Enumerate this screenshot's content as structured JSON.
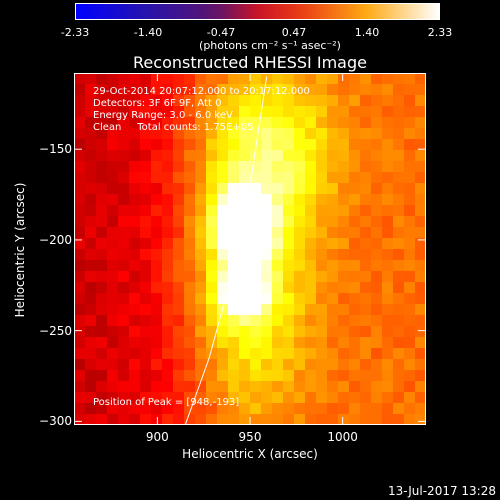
{
  "colorbar": {
    "ticks": [
      "-2.33",
      "-1.40",
      "-0.47",
      "0.47",
      "1.40",
      "2.33"
    ],
    "unit_label": "(photons cm⁻² s⁻¹ asec⁻²)",
    "range": [
      -2.33,
      2.33
    ]
  },
  "annotations": {
    "time_range": "29-Oct-2014 20:07:12.000 to 20:17:12.000",
    "detectors": "Detectors: 3F 6F 9F, Att 0",
    "energy_range": "Energy Range: 3.0 - 6.0 keV",
    "clean": "Clean     Total counts: 1.75E+05",
    "peak_position": "Position of Peak = [948,-193]"
  },
  "footer": {
    "date": "13-Jul-2017 13:28"
  },
  "colors": {
    "background": "#000000",
    "text": "#ffffff",
    "limb": "#ffffff"
  },
  "chart_data": {
    "type": "heatmap",
    "title": "Reconstructed RHESSI Image",
    "xlabel": "Heliocentric X (arcsec)",
    "ylabel": "Heliocentric Y (arcsec)",
    "xlim": [
      855,
      1045
    ],
    "ylim": [
      -302,
      -108
    ],
    "xticks": [
      900,
      950,
      1000
    ],
    "yticks": [
      -150,
      -200,
      -250,
      -300
    ],
    "colormap": "hot",
    "sources": [
      {
        "x": 947,
        "y": -193,
        "sx": 9,
        "sy": 12,
        "amp": 1.0
      },
      {
        "x": 946,
        "y": -228,
        "sx": 8,
        "sy": 9,
        "amp": 0.9
      },
      {
        "x": 948,
        "y": -210,
        "sx": 22,
        "sy": 60,
        "amp": 0.45
      },
      {
        "x": 965,
        "y": -150,
        "sx": 25,
        "sy": 30,
        "amp": 0.25
      }
    ],
    "limb": [
      {
        "x": 959,
        "y": -110
      },
      {
        "x": 950,
        "y": -170
      },
      {
        "x": 940,
        "y": -220
      },
      {
        "x": 928,
        "y": -265
      },
      {
        "x": 914,
        "y": -305
      }
    ]
  }
}
